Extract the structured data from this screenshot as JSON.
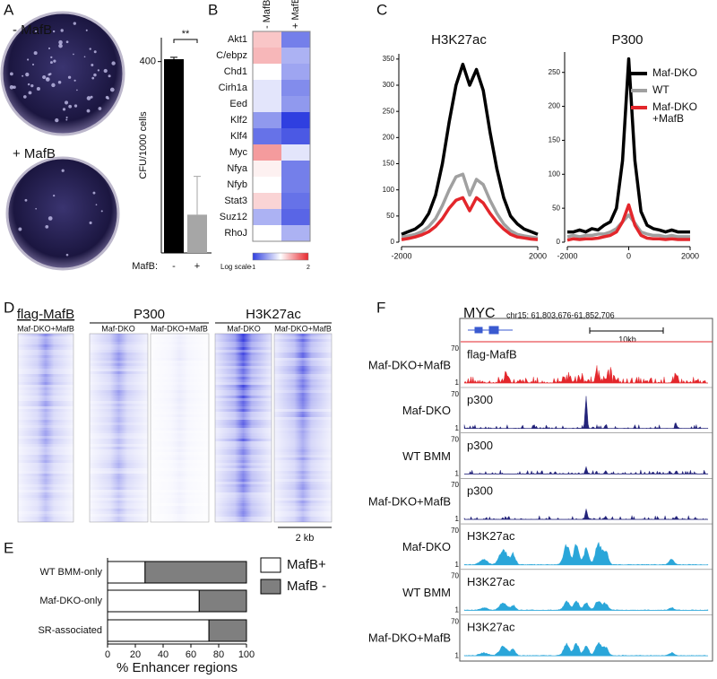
{
  "panel_labels": [
    "A",
    "B",
    "C",
    "D",
    "E",
    "F"
  ],
  "panel_a": {
    "dish_labels": [
      "- MafB",
      "+ MafB"
    ]
  },
  "chart_data": [
    {
      "type": "bar",
      "categories": [
        "-",
        "+"
      ],
      "x_label": "MafB:",
      "y_label": "CFU/1000 cells",
      "values": [
        405,
        80
      ],
      "errors": [
        4,
        80
      ],
      "colors": [
        "#000000",
        "#a6a6a6"
      ],
      "ylim": [
        0,
        450
      ],
      "yticks": [
        400
      ],
      "annotation": "**"
    },
    {
      "type": "heatmap",
      "columns": [
        "- MafB",
        "+ MafB"
      ],
      "rows": [
        "Akt1",
        "C/ebpz",
        "Chd1",
        "Cirh1a",
        "Eed",
        "Klf2",
        "Klf4",
        "Myc",
        "Nfya",
        "Nfyb",
        "Stat3",
        "Suz12",
        "RhoJ"
      ],
      "values": [
        [
          0.9,
          -0.5
        ],
        [
          1.0,
          -0.1
        ],
        [
          0.5,
          -0.2
        ],
        [
          0.3,
          -0.4
        ],
        [
          0.3,
          -0.3
        ],
        [
          -0.3,
          -1.0
        ],
        [
          -0.6,
          -0.8
        ],
        [
          1.2,
          0.3
        ],
        [
          0.6,
          -0.5
        ],
        [
          0.5,
          -0.5
        ],
        [
          0.8,
          -0.6
        ],
        [
          -0.1,
          -0.7
        ],
        [
          0.5,
          -0.1
        ]
      ],
      "colorbar_label": "Log scale",
      "clim": [
        -1,
        2
      ],
      "cticks": [
        -1,
        2
      ],
      "colors": [
        "#2f3fe0",
        "#ffffff",
        "#e8282e"
      ]
    },
    {
      "type": "line",
      "title": "H3K27ac",
      "x": [
        -2000,
        -1800,
        -1600,
        -1400,
        -1200,
        -1000,
        -800,
        -600,
        -400,
        -200,
        0,
        200,
        400,
        600,
        800,
        1000,
        1200,
        1400,
        1600,
        1800,
        2000
      ],
      "series": [
        {
          "color": "#000000",
          "values": [
            15,
            20,
            25,
            35,
            55,
            90,
            150,
            230,
            300,
            340,
            300,
            330,
            290,
            210,
            140,
            85,
            50,
            35,
            25,
            20,
            15
          ]
        },
        {
          "color": "#a0a0a0",
          "values": [
            10,
            12,
            15,
            20,
            30,
            45,
            70,
            100,
            125,
            130,
            90,
            120,
            110,
            80,
            55,
            35,
            22,
            15,
            12,
            10,
            8
          ]
        },
        {
          "color": "#e3262b",
          "values": [
            5,
            7,
            10,
            14,
            20,
            30,
            45,
            65,
            80,
            85,
            60,
            85,
            75,
            55,
            38,
            25,
            15,
            10,
            8,
            6,
            5
          ]
        }
      ],
      "xlim": [
        -2000,
        2000
      ],
      "xticks": [
        -2000,
        2000
      ],
      "ylim": [
        0,
        360
      ],
      "yticks": [
        0,
        50,
        100,
        150,
        200,
        250,
        300,
        350
      ]
    },
    {
      "type": "line",
      "title": "P300",
      "x": [
        -2000,
        -1800,
        -1600,
        -1400,
        -1200,
        -1000,
        -800,
        -600,
        -400,
        -200,
        0,
        200,
        400,
        600,
        800,
        1000,
        1200,
        1400,
        1600,
        1800,
        2000
      ],
      "series": [
        {
          "name": "Maf-DKO",
          "color": "#000000",
          "values": [
            15,
            15,
            18,
            15,
            20,
            18,
            25,
            30,
            50,
            120,
            270,
            120,
            45,
            25,
            20,
            18,
            15,
            18,
            15,
            15,
            15
          ]
        },
        {
          "name": "WT",
          "color": "#a0a0a0",
          "values": [
            8,
            10,
            8,
            10,
            10,
            12,
            12,
            15,
            20,
            30,
            40,
            28,
            15,
            12,
            10,
            10,
            8,
            10,
            8,
            8,
            8
          ]
        },
        {
          "name": "Maf-DKO+MafB",
          "color": "#e3262b",
          "values": [
            3,
            5,
            4,
            5,
            5,
            6,
            8,
            10,
            15,
            30,
            55,
            25,
            10,
            6,
            5,
            5,
            4,
            5,
            4,
            4,
            4
          ]
        }
      ],
      "xlim": [
        -2000,
        2000
      ],
      "xticks": [
        -2000,
        0,
        2000
      ],
      "ylim": [
        0,
        280
      ],
      "yticks": [
        0,
        50,
        100,
        150,
        200,
        250
      ],
      "legend": "right"
    },
    {
      "type": "stacked_barh",
      "categories": [
        "WT BMM-only",
        "Maf-DKO-only",
        "SR-associated"
      ],
      "series": [
        {
          "name": "MafB+",
          "color": "#ffffff",
          "values": [
            27,
            66,
            73
          ]
        },
        {
          "name": "MafB -",
          "color": "#7f7f7f",
          "values": [
            73,
            34,
            27
          ]
        }
      ],
      "xlim": [
        0,
        100
      ],
      "xticks": [
        0,
        20,
        40,
        60,
        80,
        100
      ],
      "x_label": "% Enhancer regions"
    }
  ],
  "panel_d": {
    "groups": [
      {
        "title": "flag-MafB",
        "tracks": [
          "Maf-DKO+MafB"
        ]
      },
      {
        "title": "P300",
        "tracks": [
          "Maf-DKO",
          "Maf-DKO+MafB"
        ]
      },
      {
        "title": "H3K27ac",
        "tracks": [
          "Maf-DKO",
          "Maf-DKO+MafB"
        ]
      }
    ],
    "scale_label": "2 kb"
  },
  "panel_f": {
    "gene": "MYC",
    "coordinates": "chr15: 61,803,676-61,852,706",
    "scale_label": "10kb",
    "tracks": [
      {
        "sample": "Maf-DKO+MafB",
        "mark": "flag-MafB",
        "color": "#e3262b",
        "ymax": 70,
        "ymin": 1
      },
      {
        "sample": "Maf-DKO",
        "mark": "p300",
        "color": "#23237a",
        "ymax": 70,
        "ymin": 1
      },
      {
        "sample": "WT BMM",
        "mark": "p300",
        "color": "#23237a",
        "ymax": 70,
        "ymin": 1
      },
      {
        "sample": "Maf-DKO+MafB",
        "mark": "p300",
        "color": "#23237a",
        "ymax": 70,
        "ymin": 1
      },
      {
        "sample": "Maf-DKO",
        "mark": "H3K27ac",
        "color": "#2aa6d9",
        "ymax": 70,
        "ymin": 1
      },
      {
        "sample": "WT BMM",
        "mark": "H3K27ac",
        "color": "#2aa6d9",
        "ymax": 70,
        "ymin": 1
      },
      {
        "sample": "Maf-DKO+MafB",
        "mark": "H3K27ac",
        "color": "#2aa6d9",
        "ymax": 70,
        "ymin": 1
      }
    ]
  }
}
